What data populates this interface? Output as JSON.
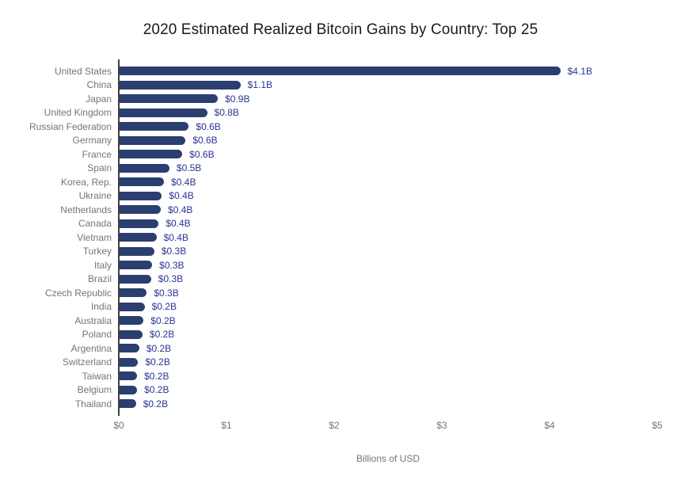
{
  "chart_data": {
    "type": "bar",
    "orientation": "horizontal",
    "title": "2020 Estimated Realized Bitcoin Gains by Country: Top 25",
    "xlabel": "Billions of USD",
    "ylabel": "",
    "xlim": [
      0,
      5
    ],
    "x_ticks": [
      "$0",
      "$1",
      "$2",
      "$3",
      "$4",
      "$5"
    ],
    "x_tick_values": [
      0,
      1,
      2,
      3,
      4,
      5
    ],
    "grid": false,
    "legend": "none",
    "bar_color": "#2a3e6f",
    "value_label_color": "#283593",
    "axis_label_color": "#757575",
    "categories": [
      "United States",
      "China",
      "Japan",
      "United Kingdom",
      "Russian Federation",
      "Germany",
      "France",
      "Spain",
      "Korea, Rep.",
      "Ukraine",
      "Netherlands",
      "Canada",
      "Vietnam",
      "Turkey",
      "Italy",
      "Brazil",
      "Czech Republic",
      "India",
      "Australia",
      "Poland",
      "Argentina",
      "Switzerland",
      "Taiwan",
      "Belgium",
      "Thailand"
    ],
    "values": [
      4.1,
      1.13,
      0.92,
      0.82,
      0.65,
      0.62,
      0.59,
      0.47,
      0.42,
      0.4,
      0.39,
      0.37,
      0.35,
      0.33,
      0.31,
      0.3,
      0.26,
      0.24,
      0.23,
      0.22,
      0.19,
      0.18,
      0.17,
      0.17,
      0.16
    ],
    "value_labels": [
      "$4.1B",
      "$1.1B",
      "$0.9B",
      "$0.8B",
      "$0.6B",
      "$0.6B",
      "$0.6B",
      "$0.5B",
      "$0.4B",
      "$0.4B",
      "$0.4B",
      "$0.4B",
      "$0.4B",
      "$0.3B",
      "$0.3B",
      "$0.3B",
      "$0.3B",
      "$0.2B",
      "$0.2B",
      "$0.2B",
      "$0.2B",
      "$0.2B",
      "$0.2B",
      "$0.2B",
      "$0.2B"
    ]
  }
}
